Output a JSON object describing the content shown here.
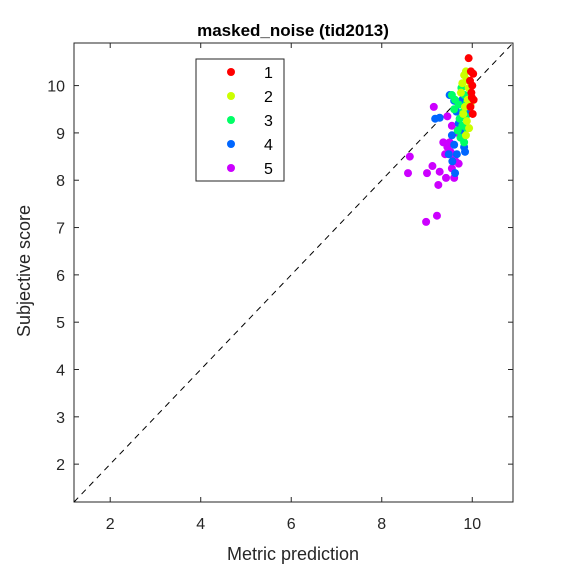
{
  "chart_data": {
    "type": "scatter",
    "title": "masked_noise (tid2013)",
    "xlabel": "Metric prediction",
    "ylabel": "Subjective score",
    "xlim": [
      1.2,
      10.9
    ],
    "ylim": [
      1.2,
      10.9
    ],
    "xticks": [
      2,
      4,
      6,
      8,
      10
    ],
    "yticks": [
      2,
      3,
      4,
      5,
      6,
      7,
      8,
      9,
      10
    ],
    "grid": false,
    "box": true,
    "diagonal": {
      "style": "dashed",
      "color": "#000000"
    },
    "legend_position": "top-left-inside",
    "series": [
      {
        "name": "1",
        "color": "#ff0000",
        "points": [
          [
            9.92,
            10.58
          ],
          [
            9.97,
            10.3
          ],
          [
            10.02,
            10.25
          ],
          [
            9.95,
            10.1
          ],
          [
            10.0,
            10.0
          ],
          [
            9.98,
            9.85
          ],
          [
            10.03,
            9.7
          ],
          [
            9.96,
            9.55
          ],
          [
            10.01,
            9.4
          ],
          [
            9.99,
            9.75
          ]
        ]
      },
      {
        "name": "2",
        "color": "#ccff00",
        "points": [
          [
            9.82,
            10.22
          ],
          [
            9.88,
            10.12
          ],
          [
            9.78,
            10.05
          ],
          [
            9.86,
            10.3
          ],
          [
            9.92,
            9.95
          ],
          [
            9.75,
            9.85
          ],
          [
            9.9,
            9.7
          ],
          [
            9.84,
            9.55
          ],
          [
            9.8,
            9.4
          ],
          [
            9.88,
            9.25
          ],
          [
            9.93,
            9.1
          ],
          [
            9.86,
            8.95
          ],
          [
            9.96,
            9.6
          ]
        ]
      },
      {
        "name": "3",
        "color": "#00ff66",
        "points": [
          [
            9.55,
            9.8
          ],
          [
            9.62,
            9.7
          ],
          [
            9.7,
            9.6
          ],
          [
            9.76,
            9.95
          ],
          [
            9.83,
            9.8
          ],
          [
            9.88,
            9.65
          ],
          [
            9.8,
            9.45
          ],
          [
            9.72,
            9.3
          ],
          [
            9.78,
            9.15
          ],
          [
            9.85,
            9.35
          ],
          [
            9.68,
            9.05
          ],
          [
            9.74,
            8.9
          ],
          [
            9.82,
            8.8
          ],
          [
            9.6,
            9.5
          ],
          [
            9.88,
            9.1
          ]
        ]
      },
      {
        "name": "4",
        "color": "#0066ff",
        "points": [
          [
            9.18,
            9.3
          ],
          [
            9.28,
            9.32
          ],
          [
            9.5,
            9.8
          ],
          [
            9.6,
            9.68
          ],
          [
            9.65,
            9.45
          ],
          [
            9.7,
            9.2
          ],
          [
            9.74,
            9.05
          ],
          [
            9.8,
            8.9
          ],
          [
            9.82,
            8.7
          ],
          [
            9.84,
            8.6
          ],
          [
            9.78,
            9.7
          ],
          [
            9.86,
            9.6
          ],
          [
            9.9,
            9.4
          ],
          [
            9.55,
            8.95
          ],
          [
            9.6,
            8.75
          ],
          [
            9.66,
            8.55
          ],
          [
            9.56,
            8.4
          ],
          [
            9.62,
            8.15
          ],
          [
            9.48,
            8.55
          ]
        ]
      },
      {
        "name": "5",
        "color": "#cc00ff",
        "points": [
          [
            9.15,
            9.55
          ],
          [
            9.45,
            9.35
          ],
          [
            9.55,
            9.15
          ],
          [
            9.68,
            9.0
          ],
          [
            8.62,
            8.5
          ],
          [
            8.58,
            8.15
          ],
          [
            9.0,
            8.15
          ],
          [
            9.28,
            8.18
          ],
          [
            9.42,
            8.05
          ],
          [
            9.36,
            8.8
          ],
          [
            9.45,
            8.7
          ],
          [
            9.52,
            8.6
          ],
          [
            9.58,
            8.5
          ],
          [
            9.63,
            8.4
          ],
          [
            9.55,
            8.25
          ],
          [
            9.6,
            8.05
          ],
          [
            9.7,
            8.35
          ],
          [
            9.4,
            8.55
          ],
          [
            9.25,
            7.9
          ],
          [
            9.22,
            7.25
          ],
          [
            8.98,
            7.12
          ],
          [
            9.12,
            8.3
          ],
          [
            9.5,
            8.8
          ]
        ]
      }
    ]
  }
}
